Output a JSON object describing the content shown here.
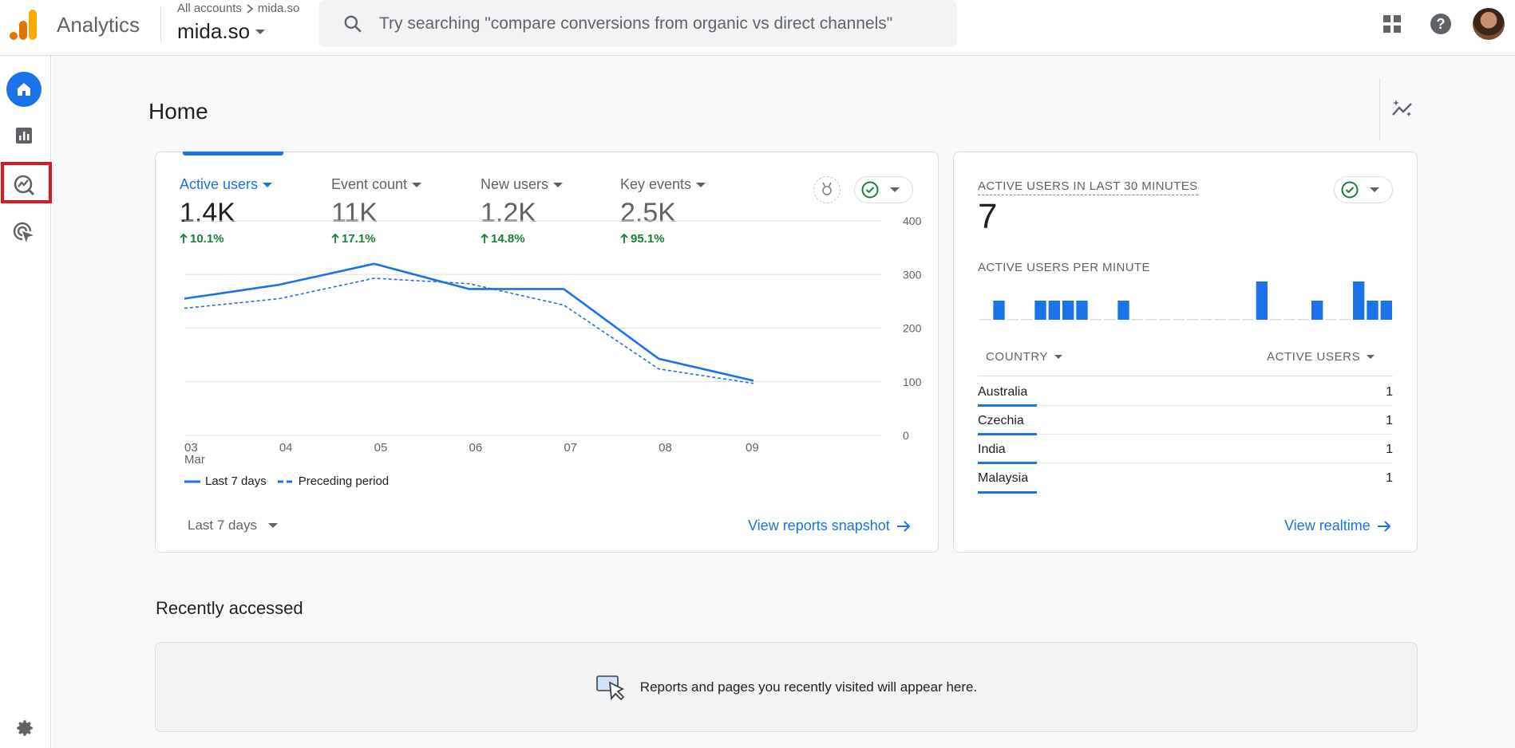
{
  "app": {
    "name": "Analytics"
  },
  "account": {
    "breadcrumb_root": "All accounts",
    "breadcrumb_child": "mida.so",
    "property": "mida.so"
  },
  "search": {
    "placeholder": "Try searching \"compare conversions from organic vs direct channels\""
  },
  "page": {
    "title": "Home"
  },
  "metrics": [
    {
      "label": "Active users",
      "value": "1.4K",
      "change": "10.1%"
    },
    {
      "label": "Event count",
      "value": "11K",
      "change": "17.1%"
    },
    {
      "label": "New users",
      "value": "1.2K",
      "change": "14.8%"
    },
    {
      "label": "Key events",
      "value": "2.5K",
      "change": "95.1%"
    }
  ],
  "chart_data": {
    "type": "line",
    "x": [
      "03",
      "04",
      "05",
      "06",
      "07",
      "08",
      "09"
    ],
    "x_sublabel": "Mar",
    "series": [
      {
        "name": "Last 7 days",
        "style": "solid",
        "values": [
          255,
          281,
          320,
          273,
          273,
          143,
          102
        ]
      },
      {
        "name": "Preceding period",
        "style": "dashed",
        "values": [
          237,
          255,
          293,
          283,
          243,
          124,
          97
        ]
      }
    ],
    "yticks": [
      0,
      100,
      200,
      300,
      400
    ],
    "ylim": [
      0,
      400
    ],
    "color": "#1a73e8"
  },
  "main_card": {
    "date_range": "Last 7 days",
    "link": "View reports snapshot"
  },
  "realtime": {
    "title": "ACTIVE USERS IN LAST 30 MINUTES",
    "value": "7",
    "per_minute_label": "ACTIVE USERS PER MINUTE",
    "per_minute": [
      0,
      1,
      0,
      0,
      1,
      1,
      1,
      1,
      0,
      0,
      1,
      0,
      0,
      0,
      0,
      0,
      0,
      0,
      0,
      0,
      2,
      0,
      0,
      0,
      1,
      0,
      0,
      2,
      1,
      1
    ],
    "col_country": "COUNTRY",
    "col_users": "ACTIVE USERS",
    "rows": [
      {
        "country": "Australia",
        "users": "1"
      },
      {
        "country": "Czechia",
        "users": "1"
      },
      {
        "country": "India",
        "users": "1"
      },
      {
        "country": "Malaysia",
        "users": "1"
      }
    ],
    "link": "View realtime"
  },
  "recent": {
    "title": "Recently accessed",
    "empty_text": "Reports and pages you recently visited will appear here."
  }
}
